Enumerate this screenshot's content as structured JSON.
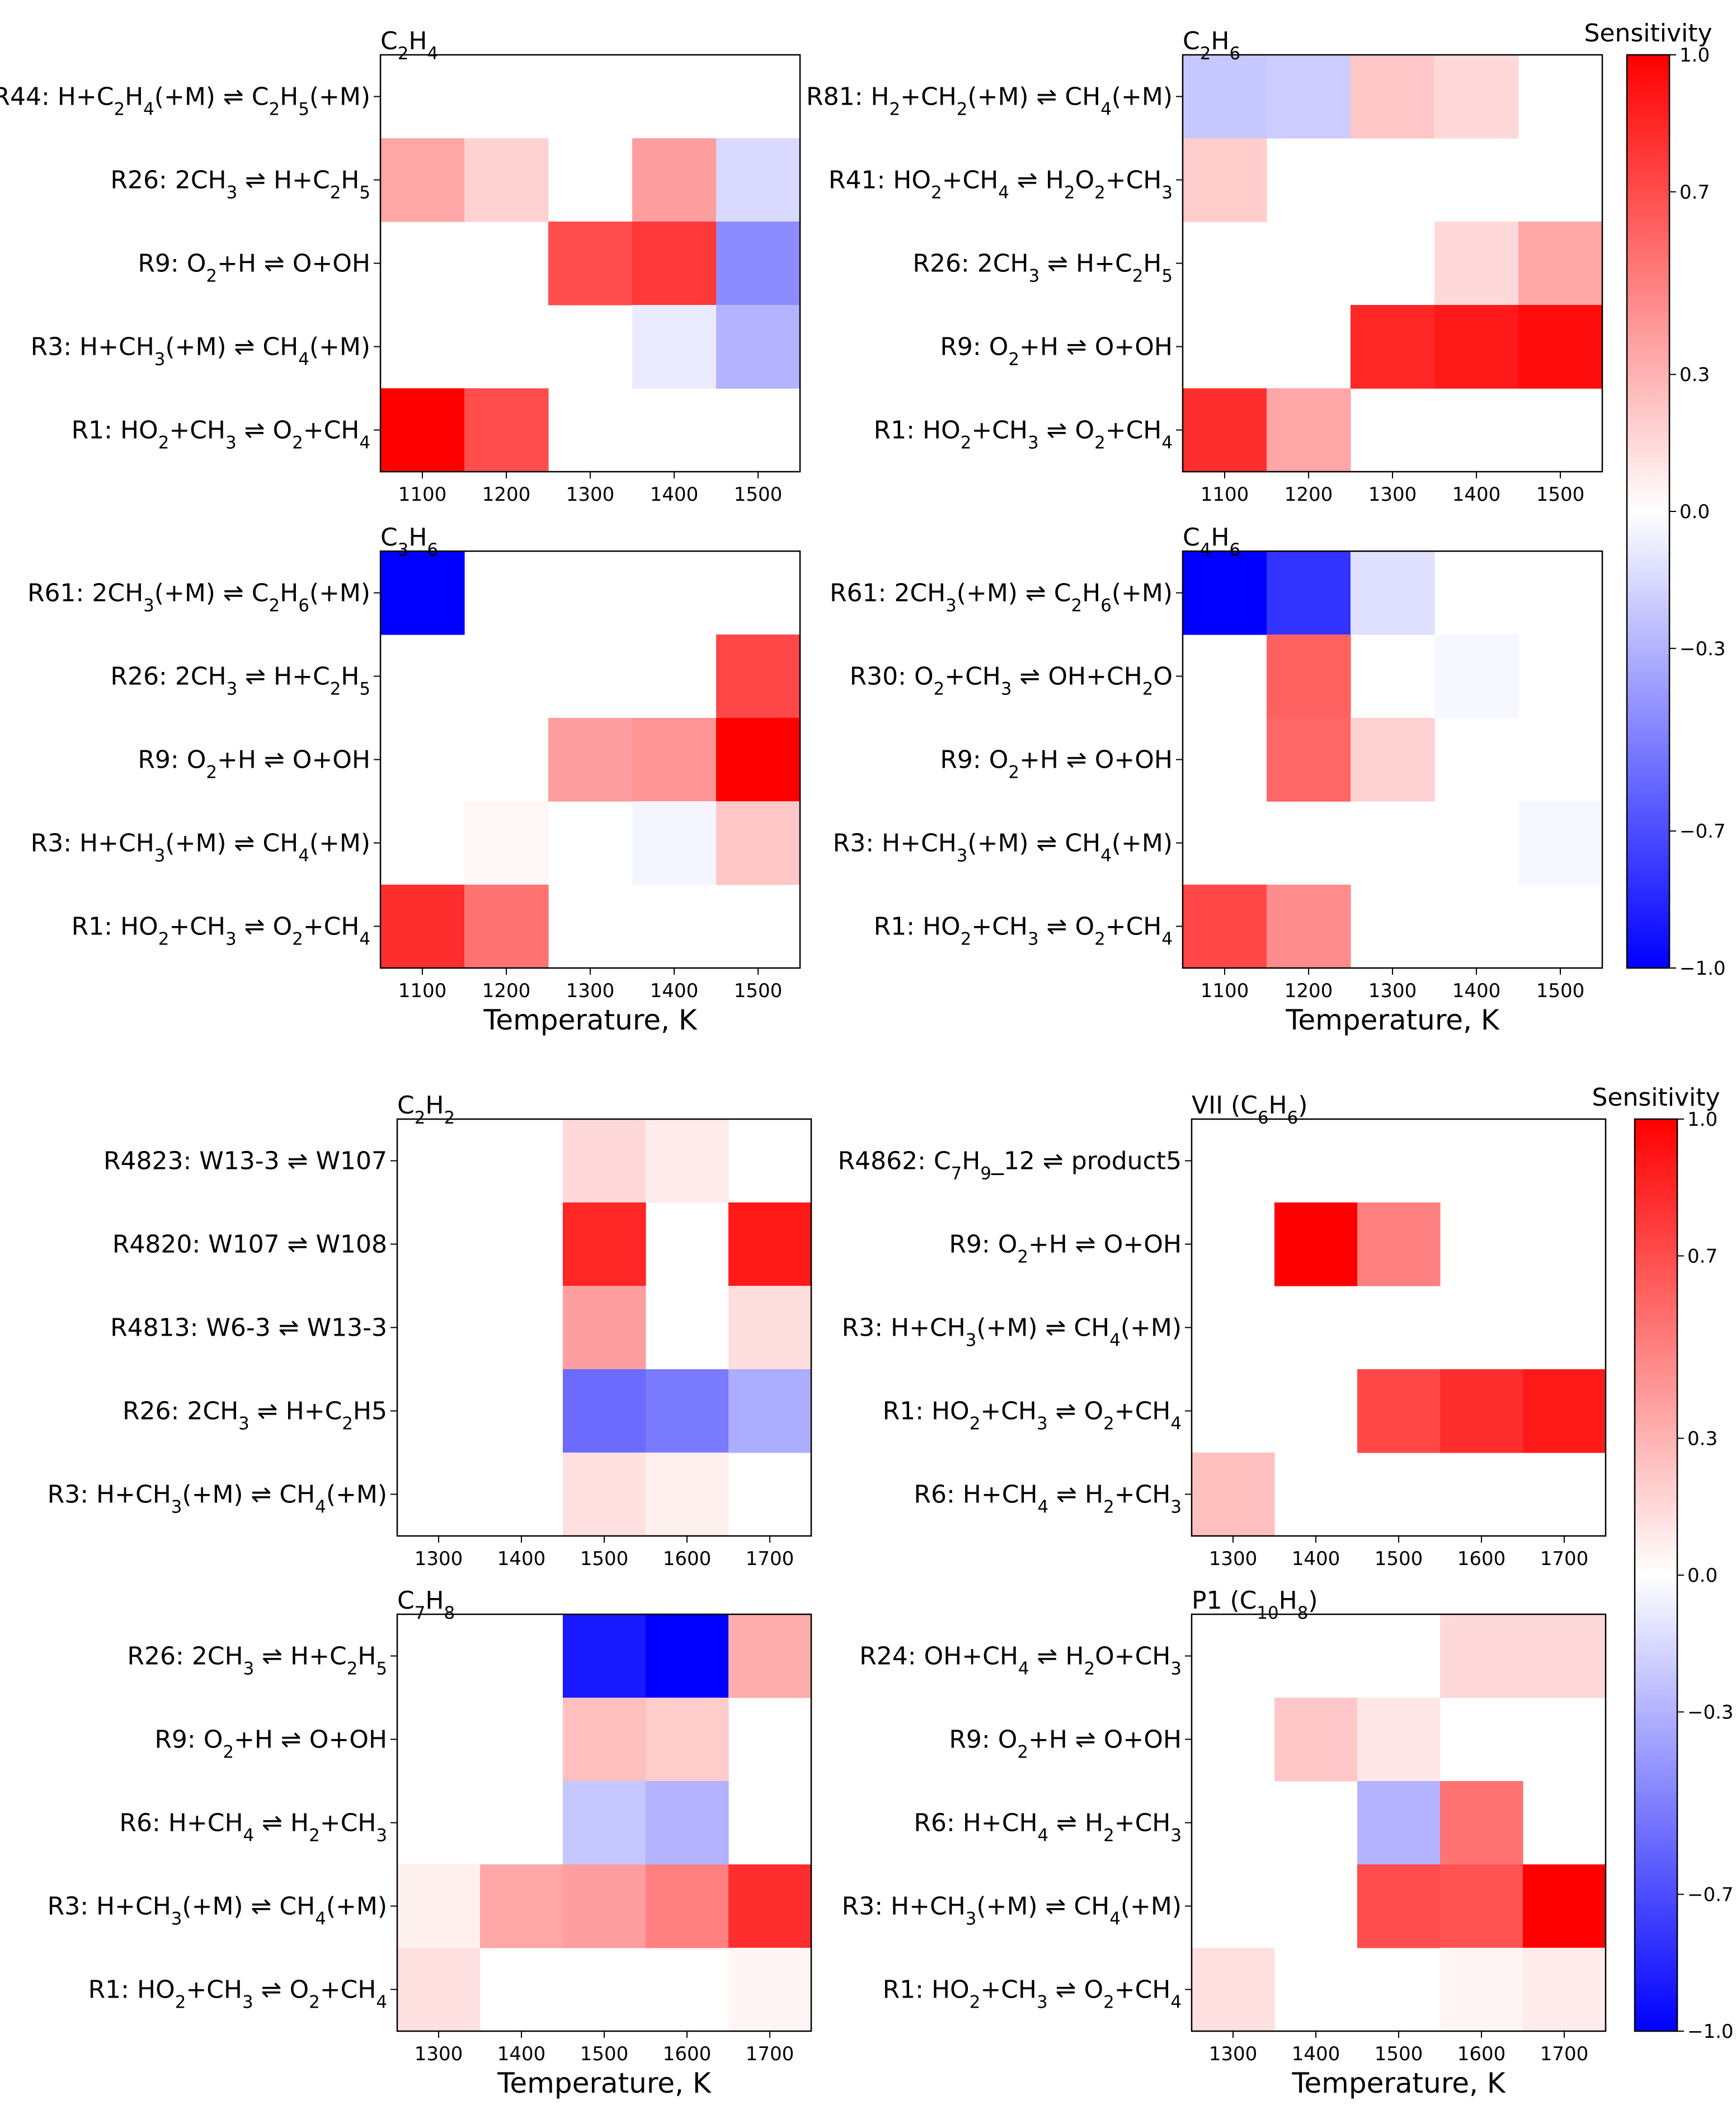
{
  "figure": {
    "colorbar_label": "Sensitivity",
    "colorbar_ticks": [
      "1.0",
      "0.7",
      "0.3",
      "0.0",
      "−0.3",
      "−0.7",
      "−1.0"
    ],
    "colorbar_tick_values": [
      1.0,
      0.7,
      0.3,
      0.0,
      -0.3,
      -0.7,
      -1.0
    ],
    "colormap": {
      "low": "#0000ff",
      "mid": "#ffffff",
      "high": "#ff0000"
    },
    "xlabel": "Temperature, K"
  },
  "chart_data": [
    {
      "type": "heatmap",
      "title": "C2H4",
      "title_html": "C<tspan baseline-shift=\"sub\" font-size=\"70%\">2</tspan>H<tspan baseline-shift=\"sub\" font-size=\"70%\">4</tspan>",
      "x": [
        "1100",
        "1200",
        "1300",
        "1400",
        "1500"
      ],
      "xlabel": "",
      "rows": [
        "R44: H+C<tspan baseline-shift=\"sub\" font-size=\"70%\">2</tspan>H<tspan baseline-shift=\"sub\" font-size=\"70%\">4</tspan>(+M) ⇌ C<tspan baseline-shift=\"sub\" font-size=\"70%\">2</tspan>H<tspan baseline-shift=\"sub\" font-size=\"70%\">5</tspan>(+M)",
        "R26: 2CH<tspan baseline-shift=\"sub\" font-size=\"70%\">3</tspan> ⇌ H+C<tspan baseline-shift=\"sub\" font-size=\"70%\">2</tspan>H<tspan baseline-shift=\"sub\" font-size=\"70%\">5</tspan>",
        "R9: O<tspan baseline-shift=\"sub\" font-size=\"70%\">2</tspan>+H ⇌ O+OH",
        "R3: H+CH<tspan baseline-shift=\"sub\" font-size=\"70%\">3</tspan>(+M) ⇌ CH<tspan baseline-shift=\"sub\" font-size=\"70%\">4</tspan>(+M)",
        "R1: HO<tspan baseline-shift=\"sub\" font-size=\"70%\">2</tspan>+CH<tspan baseline-shift=\"sub\" font-size=\"70%\">3</tspan> ⇌ O<tspan baseline-shift=\"sub\" font-size=\"70%\">2</tspan>+CH<tspan baseline-shift=\"sub\" font-size=\"70%\">4</tspan>"
      ],
      "values": [
        [
          0,
          0,
          0,
          0,
          0
        ],
        [
          0.35,
          0.18,
          0,
          0.38,
          -0.15
        ],
        [
          0,
          0,
          0.7,
          0.78,
          -0.45
        ],
        [
          0,
          0,
          0,
          -0.08,
          -0.3
        ],
        [
          1.0,
          0.7,
          0,
          0,
          0
        ]
      ]
    },
    {
      "type": "heatmap",
      "title": "C2H6",
      "title_html": "C<tspan baseline-shift=\"sub\" font-size=\"70%\">2</tspan>H<tspan baseline-shift=\"sub\" font-size=\"70%\">6</tspan>",
      "x": [
        "1100",
        "1200",
        "1300",
        "1400",
        "1500"
      ],
      "xlabel": "",
      "rows": [
        "R81: H<tspan baseline-shift=\"sub\" font-size=\"70%\">2</tspan>+CH<tspan baseline-shift=\"sub\" font-size=\"70%\">2</tspan>(+M) ⇌ CH<tspan baseline-shift=\"sub\" font-size=\"70%\">4</tspan>(+M)",
        "R41: HO<tspan baseline-shift=\"sub\" font-size=\"70%\">2</tspan>+CH<tspan baseline-shift=\"sub\" font-size=\"70%\">4</tspan> ⇌ H<tspan baseline-shift=\"sub\" font-size=\"70%\">2</tspan>O<tspan baseline-shift=\"sub\" font-size=\"70%\">2</tspan>+CH<tspan baseline-shift=\"sub\" font-size=\"70%\">3</tspan>",
        "R26: 2CH<tspan baseline-shift=\"sub\" font-size=\"70%\">3</tspan> ⇌ H+C<tspan baseline-shift=\"sub\" font-size=\"70%\">2</tspan>H<tspan baseline-shift=\"sub\" font-size=\"70%\">5</tspan>",
        "R9: O<tspan baseline-shift=\"sub\" font-size=\"70%\">2</tspan>+H ⇌ O+OH",
        "R1: HO<tspan baseline-shift=\"sub\" font-size=\"70%\">2</tspan>+CH<tspan baseline-shift=\"sub\" font-size=\"70%\">3</tspan> ⇌ O<tspan baseline-shift=\"sub\" font-size=\"70%\">2</tspan>+CH<tspan baseline-shift=\"sub\" font-size=\"70%\">4</tspan>"
      ],
      "values": [
        [
          -0.22,
          -0.2,
          0.22,
          0.15,
          0
        ],
        [
          0.2,
          0,
          0,
          0,
          0
        ],
        [
          0,
          0,
          0,
          0.15,
          0.35
        ],
        [
          0,
          0,
          0.85,
          0.9,
          0.95
        ],
        [
          0.82,
          0.35,
          0,
          0,
          0
        ]
      ]
    },
    {
      "type": "heatmap",
      "title": "C3H6",
      "title_html": "C<tspan baseline-shift=\"sub\" font-size=\"70%\">3</tspan>H<tspan baseline-shift=\"sub\" font-size=\"70%\">6</tspan>",
      "x": [
        "1100",
        "1200",
        "1300",
        "1400",
        "1500"
      ],
      "xlabel": "Temperature, K",
      "rows": [
        "R61: 2CH<tspan baseline-shift=\"sub\" font-size=\"70%\">3</tspan>(+M) ⇌ C<tspan baseline-shift=\"sub\" font-size=\"70%\">2</tspan>H<tspan baseline-shift=\"sub\" font-size=\"70%\">6</tspan>(+M)",
        "R26: 2CH<tspan baseline-shift=\"sub\" font-size=\"70%\">3</tspan> ⇌ H+C<tspan baseline-shift=\"sub\" font-size=\"70%\">2</tspan>H<tspan baseline-shift=\"sub\" font-size=\"70%\">5</tspan>",
        "R9: O<tspan baseline-shift=\"sub\" font-size=\"70%\">2</tspan>+H ⇌ O+OH",
        "R3: H+CH<tspan baseline-shift=\"sub\" font-size=\"70%\">3</tspan>(+M) ⇌ CH<tspan baseline-shift=\"sub\" font-size=\"70%\">4</tspan>(+M)",
        "R1: HO<tspan baseline-shift=\"sub\" font-size=\"70%\">2</tspan>+CH<tspan baseline-shift=\"sub\" font-size=\"70%\">3</tspan> ⇌ O<tspan baseline-shift=\"sub\" font-size=\"70%\">2</tspan>+CH<tspan baseline-shift=\"sub\" font-size=\"70%\">4</tspan>"
      ],
      "values": [
        [
          -1.0,
          0,
          0,
          0,
          0
        ],
        [
          0,
          0,
          0,
          0,
          0.72
        ],
        [
          0,
          0,
          0.38,
          0.42,
          1.0
        ],
        [
          0,
          0.03,
          0,
          -0.04,
          0.22
        ],
        [
          0.82,
          0.55,
          0,
          0,
          0
        ]
      ]
    },
    {
      "type": "heatmap",
      "title": "C4H6",
      "title_html": "C<tspan baseline-shift=\"sub\" font-size=\"70%\">4</tspan>H<tspan baseline-shift=\"sub\" font-size=\"70%\">6</tspan>",
      "x": [
        "1100",
        "1200",
        "1300",
        "1400",
        "1500"
      ],
      "xlabel": "Temperature, K",
      "rows": [
        "R61: 2CH<tspan baseline-shift=\"sub\" font-size=\"70%\">3</tspan>(+M) ⇌ C<tspan baseline-shift=\"sub\" font-size=\"70%\">2</tspan>H<tspan baseline-shift=\"sub\" font-size=\"70%\">6</tspan>(+M)",
        "R30: O<tspan baseline-shift=\"sub\" font-size=\"70%\">2</tspan>+CH<tspan baseline-shift=\"sub\" font-size=\"70%\">3</tspan> ⇌ OH+CH<tspan baseline-shift=\"sub\" font-size=\"70%\">2</tspan>O",
        "R9: O<tspan baseline-shift=\"sub\" font-size=\"70%\">2</tspan>+H ⇌ O+OH",
        "R3: H+CH<tspan baseline-shift=\"sub\" font-size=\"70%\">3</tspan>(+M) ⇌ CH<tspan baseline-shift=\"sub\" font-size=\"70%\">4</tspan>(+M)",
        "R1: HO<tspan baseline-shift=\"sub\" font-size=\"70%\">2</tspan>+CH<tspan baseline-shift=\"sub\" font-size=\"70%\">3</tspan> ⇌ O<tspan baseline-shift=\"sub\" font-size=\"70%\">2</tspan>+CH<tspan baseline-shift=\"sub\" font-size=\"70%\">4</tspan>"
      ],
      "values": [
        [
          -1.0,
          -0.8,
          -0.12,
          0,
          0
        ],
        [
          0,
          0.62,
          0,
          -0.03,
          0
        ],
        [
          0,
          0.6,
          0.18,
          0,
          0
        ],
        [
          0,
          0,
          0,
          0,
          -0.03
        ],
        [
          0.72,
          0.45,
          0,
          0,
          0
        ]
      ]
    },
    {
      "type": "heatmap",
      "title": "C2H2",
      "title_html": "C<tspan baseline-shift=\"sub\" font-size=\"70%\">2</tspan>H<tspan baseline-shift=\"sub\" font-size=\"70%\">2</tspan>",
      "x": [
        "1300",
        "1400",
        "1500",
        "1600",
        "1700"
      ],
      "xlabel": "",
      "rows": [
        "R4823: W13-3 ⇌ W107",
        "R4820: W107 ⇌ W108",
        "R4813: W6-3 ⇌ W13-3",
        "R26: 2CH<tspan baseline-shift=\"sub\" font-size=\"70%\">3</tspan> ⇌ H+C<tspan baseline-shift=\"sub\" font-size=\"70%\">2</tspan>H5",
        "R3: H+CH<tspan baseline-shift=\"sub\" font-size=\"70%\">3</tspan>(+M) ⇌ CH<tspan baseline-shift=\"sub\" font-size=\"70%\">4</tspan>(+M)"
      ],
      "values": [
        [
          0,
          0,
          0.15,
          0.08,
          0
        ],
        [
          0,
          0,
          0.85,
          0,
          0.9
        ],
        [
          0,
          0,
          0.38,
          0,
          0.13
        ],
        [
          0,
          0,
          -0.58,
          -0.52,
          -0.32
        ],
        [
          0,
          0,
          0.12,
          0.06,
          0
        ]
      ]
    },
    {
      "type": "heatmap",
      "title": "VII (C6H6)",
      "title_html": "VII (C<tspan baseline-shift=\"sub\" font-size=\"70%\">6</tspan>H<tspan baseline-shift=\"sub\" font-size=\"70%\">6</tspan>)",
      "x": [
        "1300",
        "1400",
        "1500",
        "1600",
        "1700"
      ],
      "xlabel": "",
      "rows": [
        "R4862: C<tspan baseline-shift=\"sub\" font-size=\"70%\">7</tspan>H<tspan baseline-shift=\"sub\" font-size=\"70%\">9</tspan>_12 ⇌ product5",
        "R9: O<tspan baseline-shift=\"sub\" font-size=\"70%\">2</tspan>+H ⇌ O+OH",
        "R3: H+CH<tspan baseline-shift=\"sub\" font-size=\"70%\">3</tspan>(+M) ⇌ CH<tspan baseline-shift=\"sub\" font-size=\"70%\">4</tspan>(+M)",
        "R1: HO<tspan baseline-shift=\"sub\" font-size=\"70%\">2</tspan>+CH<tspan baseline-shift=\"sub\" font-size=\"70%\">3</tspan> ⇌ O<tspan baseline-shift=\"sub\" font-size=\"70%\">2</tspan>+CH<tspan baseline-shift=\"sub\" font-size=\"70%\">4</tspan>",
        "R6: H+CH<tspan baseline-shift=\"sub\" font-size=\"70%\">4</tspan> ⇌ H<tspan baseline-shift=\"sub\" font-size=\"70%\">2</tspan>+CH<tspan baseline-shift=\"sub\" font-size=\"70%\">3</tspan>"
      ],
      "values": [
        [
          0,
          0,
          0,
          0,
          0
        ],
        [
          0,
          1.0,
          0.5,
          0,
          0
        ],
        [
          0,
          0,
          0,
          0,
          0
        ],
        [
          0,
          0,
          0.72,
          0.82,
          0.9
        ],
        [
          0.25,
          0,
          0,
          0,
          0
        ]
      ]
    },
    {
      "type": "heatmap",
      "title": "C7H8",
      "title_html": "C<tspan baseline-shift=\"sub\" font-size=\"70%\">7</tspan>H<tspan baseline-shift=\"sub\" font-size=\"70%\">8</tspan>",
      "x": [
        "1300",
        "1400",
        "1500",
        "1600",
        "1700"
      ],
      "xlabel": "Temperature, K",
      "rows": [
        "R26: 2CH<tspan baseline-shift=\"sub\" font-size=\"70%\">3</tspan> ⇌ H+C<tspan baseline-shift=\"sub\" font-size=\"70%\">2</tspan>H<tspan baseline-shift=\"sub\" font-size=\"70%\">5</tspan>",
        "R9: O<tspan baseline-shift=\"sub\" font-size=\"70%\">2</tspan>+H ⇌ O+OH",
        "R6: H+CH<tspan baseline-shift=\"sub\" font-size=\"70%\">4</tspan> ⇌ H<tspan baseline-shift=\"sub\" font-size=\"70%\">2</tspan>+CH<tspan baseline-shift=\"sub\" font-size=\"70%\">3</tspan>",
        "R3: H+CH<tspan baseline-shift=\"sub\" font-size=\"70%\">3</tspan>(+M) ⇌ CH<tspan baseline-shift=\"sub\" font-size=\"70%\">4</tspan>(+M)",
        "R1: HO<tspan baseline-shift=\"sub\" font-size=\"70%\">2</tspan>+CH<tspan baseline-shift=\"sub\" font-size=\"70%\">3</tspan> ⇌ O<tspan baseline-shift=\"sub\" font-size=\"70%\">2</tspan>+CH<tspan baseline-shift=\"sub\" font-size=\"70%\">4</tspan>"
      ],
      "values": [
        [
          0,
          0,
          -0.9,
          -1.0,
          0.32
        ],
        [
          0,
          0,
          0.25,
          0.2,
          0
        ],
        [
          0,
          0,
          -0.22,
          -0.3,
          0
        ],
        [
          0.06,
          0.35,
          0.38,
          0.5,
          0.82
        ],
        [
          0.12,
          0,
          0,
          0,
          0.04
        ]
      ]
    },
    {
      "type": "heatmap",
      "title": "P1 (C10H8)",
      "title_html": "P1 (C<tspan baseline-shift=\"sub\" font-size=\"70%\">10</tspan>H<tspan baseline-shift=\"sub\" font-size=\"70%\">8</tspan>)",
      "x": [
        "1300",
        "1400",
        "1500",
        "1600",
        "1700"
      ],
      "xlabel": "Temperature, K",
      "rows": [
        "R24: OH+CH<tspan baseline-shift=\"sub\" font-size=\"70%\">4</tspan> ⇌ H<tspan baseline-shift=\"sub\" font-size=\"70%\">2</tspan>O+CH<tspan baseline-shift=\"sub\" font-size=\"70%\">3</tspan>",
        "R9: O<tspan baseline-shift=\"sub\" font-size=\"70%\">2</tspan>+H ⇌ O+OH",
        "R6: H+CH<tspan baseline-shift=\"sub\" font-size=\"70%\">4</tspan> ⇌ H<tspan baseline-shift=\"sub\" font-size=\"70%\">2</tspan>+CH<tspan baseline-shift=\"sub\" font-size=\"70%\">3</tspan>",
        "R3: H+CH<tspan baseline-shift=\"sub\" font-size=\"70%\">3</tspan>(+M) ⇌ CH<tspan baseline-shift=\"sub\" font-size=\"70%\">4</tspan>(+M)",
        "R1: HO<tspan baseline-shift=\"sub\" font-size=\"70%\">2</tspan>+CH<tspan baseline-shift=\"sub\" font-size=\"70%\">3</tspan> ⇌ O<tspan baseline-shift=\"sub\" font-size=\"70%\">2</tspan>+CH<tspan baseline-shift=\"sub\" font-size=\"70%\">4</tspan>"
      ],
      "values": [
        [
          0,
          0,
          0,
          0.15,
          0.15
        ],
        [
          0,
          0.22,
          0.1,
          0,
          0
        ],
        [
          0,
          0,
          -0.3,
          0.55,
          0
        ],
        [
          0,
          0,
          0.7,
          0.68,
          1.0
        ],
        [
          0.12,
          0,
          0,
          0.04,
          0.08
        ]
      ]
    }
  ]
}
